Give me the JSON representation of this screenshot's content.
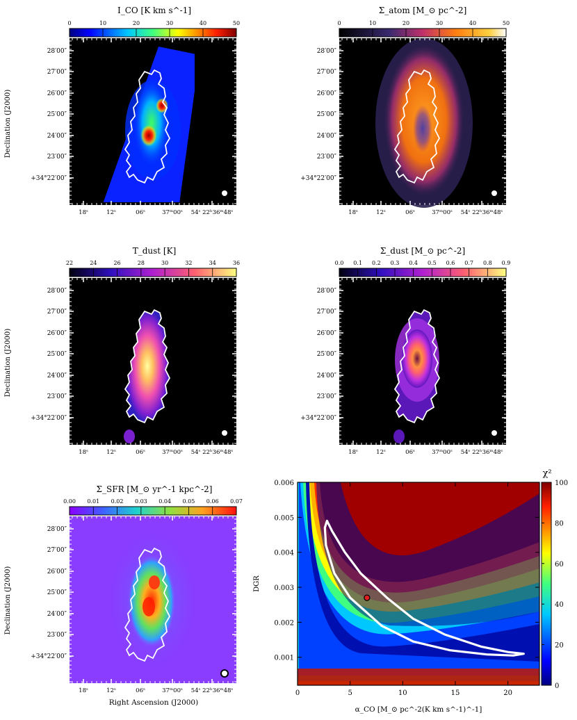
{
  "panels": [
    {
      "id": "ico",
      "colorbar_title": "I_CO [K km s^-1]",
      "colorbar_ticks": [
        "0",
        "10",
        "20",
        "30",
        "40",
        "50"
      ],
      "colormap": "jet",
      "ylabel": "Declination (J2000)",
      "xlabel": "",
      "dec_ticks": [
        "28′00″",
        "27′00″",
        "26′00″",
        "25′00″",
        "24′00″",
        "23′00″",
        "+34°22′00″"
      ],
      "ra_ticks": [
        "18ˢ",
        "12ˢ",
        "06ˢ",
        "37ᵐ00ˢ",
        "54ˢ 22ʰ36ᵐ48ˢ"
      ]
    },
    {
      "id": "atom",
      "colorbar_title": "Σ_atom [M_⊙ pc^-2]",
      "colorbar_ticks": [
        "0",
        "10",
        "20",
        "30",
        "40",
        "50"
      ],
      "colormap": "hot",
      "ylabel": "",
      "xlabel": "",
      "dec_ticks": [
        "28′00″",
        "27′00″",
        "26′00″",
        "25′00″",
        "24′00″",
        "23′00″",
        "+34°22′00″"
      ],
      "ra_ticks": [
        "18ˢ",
        "12ˢ",
        "06ˢ",
        "37ᵐ00ˢ",
        "54ˢ 22ʰ36ᵐ48ˢ"
      ]
    },
    {
      "id": "tdust",
      "colorbar_title": "T_dust [K]",
      "colorbar_ticks": [
        "22",
        "24",
        "26",
        "28",
        "30",
        "32",
        "34",
        "36"
      ],
      "colormap": "plasma",
      "ylabel": "Declination (J2000)",
      "xlabel": "",
      "dec_ticks": [
        "28′00″",
        "27′00″",
        "26′00″",
        "25′00″",
        "24′00″",
        "23′00″",
        "+34°22′00″"
      ],
      "ra_ticks": [
        "18ˢ",
        "12ˢ",
        "06ˢ",
        "37ᵐ00ˢ",
        "54ˢ 22ʰ36ᵐ48ˢ"
      ]
    },
    {
      "id": "sdust",
      "colorbar_title": "Σ_dust [M_⊙ pc^-2]",
      "colorbar_ticks": [
        "0.0",
        "0.1",
        "0.2",
        "0.3",
        "0.4",
        "0.5",
        "0.6",
        "0.7",
        "0.8",
        "0.9"
      ],
      "colormap": "plasma",
      "ylabel": "",
      "xlabel": "",
      "dec_ticks": [
        "28′00″",
        "27′00″",
        "26′00″",
        "25′00″",
        "24′00″",
        "23′00″",
        "+34°22′00″"
      ],
      "ra_ticks": [
        "18ˢ",
        "12ˢ",
        "06ˢ",
        "37ᵐ00ˢ",
        "54ˢ 22ʰ36ᵐ48ˢ"
      ]
    },
    {
      "id": "sfr",
      "colorbar_title": "Σ_SFR [M_⊙ yr^-1 kpc^-2]",
      "colorbar_ticks": [
        "0.00",
        "0.01",
        "0.02",
        "0.03",
        "0.04",
        "0.05",
        "0.06",
        "0.07"
      ],
      "colormap": "rainbow",
      "ylabel": "Declination (J2000)",
      "xlabel": "Right Ascension (J2000)",
      "dec_ticks": [
        "28′00″",
        "27′00″",
        "26′00″",
        "25′00″",
        "24′00″",
        "23′00″",
        "+34°22′00″"
      ],
      "ra_ticks": [
        "18ˢ",
        "12ˢ",
        "06ˢ",
        "37ᵐ00ˢ",
        "54ˢ 22ʰ36ᵐ48ˢ"
      ]
    }
  ],
  "chart_data": {
    "type": "heatmap",
    "title": "",
    "xlabel": "α_CO [M_⊙ pc^-2(K km s^-1)^-1]",
    "ylabel": "DGR",
    "xlim": [
      0,
      23
    ],
    "ylim": [
      0.0002,
      0.006
    ],
    "x_ticks": [
      0,
      5,
      10,
      15,
      20
    ],
    "y_ticks": [
      0.001,
      0.002,
      0.003,
      0.004,
      0.005,
      0.006
    ],
    "colorbar_label": "χ²",
    "colorbar_range": [
      0,
      100
    ],
    "colorbar_ticks": [
      0,
      20,
      40,
      60,
      80,
      100
    ],
    "colormap": "jet",
    "best_fit": {
      "x": 6.6,
      "y": 0.0027
    },
    "contour": [
      [
        2.8,
        0.0049
      ],
      [
        3.3,
        0.0046
      ],
      [
        4.5,
        0.004
      ],
      [
        6.0,
        0.0034
      ],
      [
        8.5,
        0.0027
      ],
      [
        11.0,
        0.0021
      ],
      [
        14.0,
        0.00165
      ],
      [
        17.5,
        0.0013
      ],
      [
        20.0,
        0.00115
      ],
      [
        21.5,
        0.0011
      ],
      [
        20.5,
        0.00105
      ],
      [
        18.0,
        0.00108
      ],
      [
        14.5,
        0.0012
      ],
      [
        11.0,
        0.00145
      ],
      [
        8.0,
        0.0019
      ],
      [
        5.0,
        0.0027
      ],
      [
        3.5,
        0.0034
      ],
      [
        2.7,
        0.0042
      ],
      [
        2.6,
        0.0047
      ],
      [
        2.8,
        0.0049
      ]
    ]
  }
}
